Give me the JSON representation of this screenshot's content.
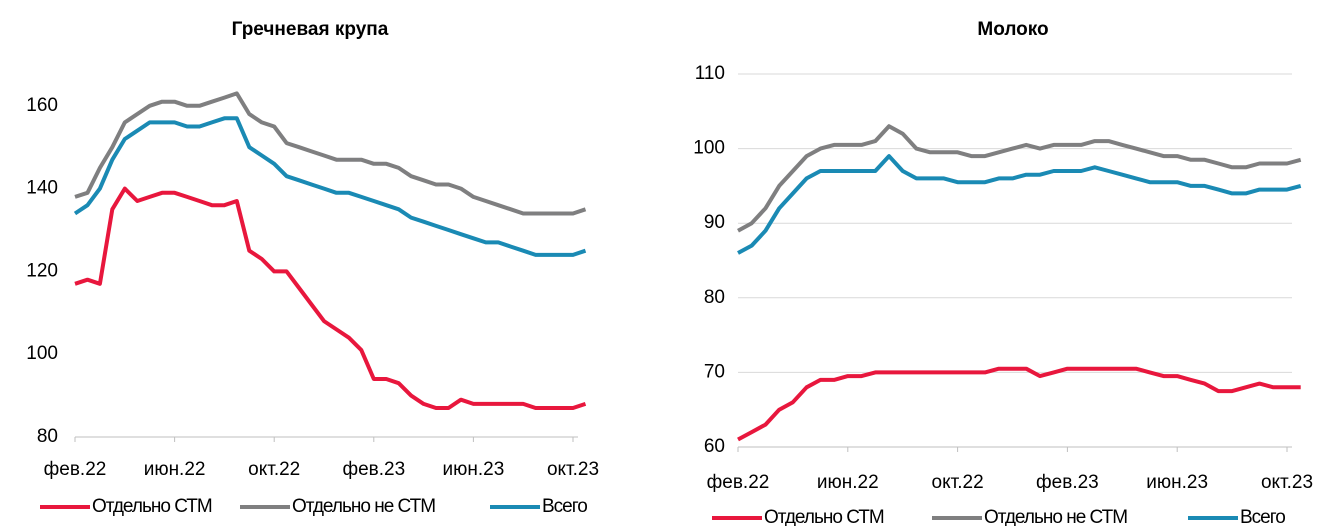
{
  "chart_data": [
    {
      "type": "line",
      "title": "Гречневая крупа",
      "categories": [
        "фев.22",
        null,
        null,
        null,
        null,
        null,
        null,
        null,
        "июн.22",
        null,
        null,
        null,
        null,
        null,
        null,
        null,
        "окт.22",
        null,
        null,
        null,
        null,
        null,
        null,
        null,
        "фев.23",
        null,
        null,
        null,
        null,
        null,
        null,
        null,
        "июн.23",
        null,
        null,
        null,
        null,
        null,
        null,
        null,
        "окт.23",
        null
      ],
      "series": [
        {
          "name": "Отдельно СТМ",
          "color": "#e8173d",
          "values": [
            117,
            118,
            117,
            135,
            140,
            137,
            138,
            139,
            139,
            138,
            137,
            136,
            136,
            137,
            125,
            123,
            120,
            120,
            116,
            112,
            108,
            106,
            104,
            101,
            94,
            94,
            93,
            90,
            88,
            87,
            87,
            89,
            88,
            88,
            88,
            88,
            88,
            87,
            87,
            87,
            87,
            88
          ]
        },
        {
          "name": "Отдельно не СТМ",
          "color": "#7f7f80",
          "values": [
            138,
            139,
            145,
            150,
            156,
            158,
            160,
            161,
            161,
            160,
            160,
            161,
            162,
            163,
            158,
            156,
            155,
            151,
            150,
            149,
            148,
            147,
            147,
            147,
            146,
            146,
            145,
            143,
            142,
            141,
            141,
            140,
            138,
            137,
            136,
            135,
            134,
            134,
            134,
            134,
            134,
            135
          ]
        },
        {
          "name": "Всего",
          "color": "#1a8ab4",
          "values": [
            134,
            136,
            140,
            147,
            152,
            154,
            156,
            156,
            156,
            155,
            155,
            156,
            157,
            157,
            150,
            148,
            146,
            143,
            142,
            141,
            140,
            139,
            139,
            138,
            137,
            136,
            135,
            133,
            132,
            131,
            130,
            129,
            128,
            127,
            127,
            126,
            125,
            124,
            124,
            124,
            124,
            125
          ]
        }
      ],
      "ylim": [
        80,
        166
      ],
      "yticks": [
        80,
        100,
        120,
        140,
        160
      ],
      "grid": false,
      "legend": "bottom"
    },
    {
      "type": "line",
      "title": "Молоко",
      "categories": [
        "фев.22",
        null,
        null,
        null,
        null,
        null,
        null,
        null,
        "июн.22",
        null,
        null,
        null,
        null,
        null,
        null,
        null,
        "окт.22",
        null,
        null,
        null,
        null,
        null,
        null,
        null,
        "фев.23",
        null,
        null,
        null,
        null,
        null,
        null,
        null,
        "июн.23",
        null,
        null,
        null,
        null,
        null,
        null,
        null,
        "окт.23",
        null
      ],
      "series": [
        {
          "name": "Отдельно СТМ",
          "color": "#e8173d",
          "values": [
            61,
            62,
            63,
            65,
            66,
            68,
            69,
            69,
            69.5,
            69.5,
            70,
            70,
            70,
            70,
            70,
            70,
            70,
            70,
            70,
            70.5,
            70.5,
            70.5,
            69.5,
            70,
            70.5,
            70.5,
            70.5,
            70.5,
            70.5,
            70.5,
            70,
            69.5,
            69.5,
            69,
            68.5,
            67.5,
            67.5,
            68,
            68.5,
            68,
            68,
            68
          ]
        },
        {
          "name": "Отдельно не СТМ",
          "color": "#7f7f80",
          "values": [
            89,
            90,
            92,
            95,
            97,
            99,
            100,
            100.5,
            100.5,
            100.5,
            101,
            103,
            102,
            100,
            99.5,
            99.5,
            99.5,
            99,
            99,
            99.5,
            100,
            100.5,
            100,
            100.5,
            100.5,
            100.5,
            101,
            101,
            100.5,
            100,
            99.5,
            99,
            99,
            98.5,
            98.5,
            98,
            97.5,
            97.5,
            98,
            98,
            98,
            98.5
          ]
        },
        {
          "name": "Всего",
          "color": "#1a8ab4",
          "values": [
            86,
            87,
            89,
            92,
            94,
            96,
            97,
            97,
            97,
            97,
            97,
            99,
            97,
            96,
            96,
            96,
            95.5,
            95.5,
            95.5,
            96,
            96,
            96.5,
            96.5,
            97,
            97,
            97,
            97.5,
            97,
            96.5,
            96,
            95.5,
            95.5,
            95.5,
            95,
            95,
            94.5,
            94,
            94,
            94.5,
            94.5,
            94.5,
            95
          ]
        }
      ],
      "ylim": [
        60,
        110
      ],
      "yticks": [
        60,
        70,
        80,
        90,
        100,
        110
      ],
      "grid": true,
      "legend": "bottom"
    }
  ]
}
